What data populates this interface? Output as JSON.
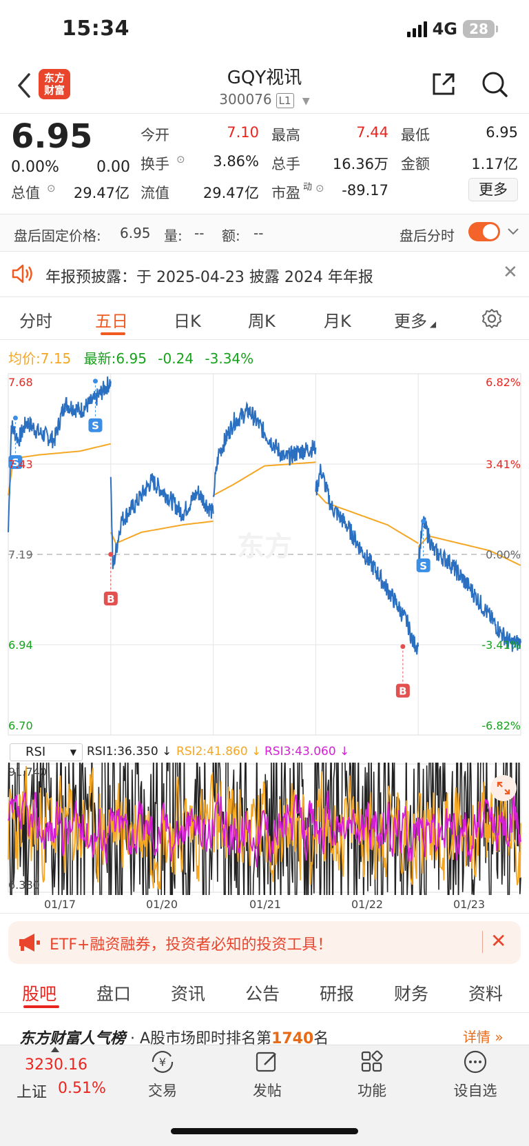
{
  "status_bar": {
    "time": "15:34",
    "network": "4G",
    "battery": "28"
  },
  "header": {
    "logo_line1": "东方",
    "logo_line2": "财富",
    "title": "GQY视讯",
    "code": "300076",
    "level": "L1"
  },
  "quote": {
    "price": "6.95",
    "change_pct": "0.00%",
    "change": "0.00",
    "stats": {
      "open_label": "今开",
      "open": "7.10",
      "high_label": "最高",
      "high": "7.44",
      "low_label": "最低",
      "low": "6.95",
      "turnover_label": "换手",
      "turnover": "3.86%",
      "volume_label": "总手",
      "volume": "16.36万",
      "amount_label": "金额",
      "amount": "1.17亿",
      "mktcap_label": "总值",
      "mktcap": "29.47亿",
      "float_label": "流值",
      "float": "29.47亿",
      "pe_label": "市盈",
      "pe_sup": "动",
      "pe": "-89.17"
    },
    "more_label": "更多"
  },
  "after_hours": {
    "label": "盘后固定价格:",
    "price": "6.95",
    "vol_label": "量:",
    "vol": "--",
    "amt_label": "额:",
    "amt": "--",
    "toggle_label": "盘后分时",
    "toggle_on": true
  },
  "notice": {
    "text": "年报预披露：于 2025-04-23 披露 2024 年年报"
  },
  "tabs": [
    "分时",
    "五日",
    "日K",
    "周K",
    "月K",
    "更多"
  ],
  "active_tab": "五日",
  "legend": {
    "avg_label": "均价:",
    "avg": "7.15",
    "latest_label": "最新:",
    "latest": "6.95",
    "chg": "-0.24",
    "pct": "-3.34%"
  },
  "chart_data": {
    "type": "line",
    "y_labels_left": [
      "7.68",
      "7.43",
      "7.19",
      "6.94",
      "6.70"
    ],
    "y_labels_right": [
      "6.82%",
      "3.41%",
      "0.00%",
      "-3.41%",
      "-6.82%"
    ],
    "ylim": [
      6.7,
      7.68
    ],
    "x_labels": [
      "01/17",
      "01/20",
      "01/21",
      "01/22",
      "01/23"
    ],
    "series": [
      {
        "name": "最新",
        "color": "#2b6fc1"
      },
      {
        "name": "均价",
        "color": "#f5a623"
      }
    ],
    "price_anchors": [
      [
        0,
        7.25
      ],
      [
        0.03,
        7.54
      ],
      [
        0.1,
        7.5
      ],
      [
        0.18,
        7.55
      ],
      [
        0.3,
        7.52
      ],
      [
        0.45,
        7.5
      ],
      [
        0.55,
        7.6
      ],
      [
        0.7,
        7.58
      ],
      [
        0.85,
        7.61
      ],
      [
        1.0,
        7.66
      ],
      [
        1.0,
        7.4
      ],
      [
        1.02,
        7.15
      ],
      [
        1.1,
        7.28
      ],
      [
        1.25,
        7.33
      ],
      [
        1.4,
        7.39
      ],
      [
        1.55,
        7.35
      ],
      [
        1.7,
        7.3
      ],
      [
        1.85,
        7.36
      ],
      [
        2.0,
        7.3
      ],
      [
        2.0,
        7.35
      ],
      [
        2.05,
        7.46
      ],
      [
        2.2,
        7.55
      ],
      [
        2.35,
        7.58
      ],
      [
        2.5,
        7.52
      ],
      [
        2.7,
        7.45
      ],
      [
        2.85,
        7.47
      ],
      [
        3.0,
        7.48
      ],
      [
        3.0,
        7.36
      ],
      [
        3.05,
        7.42
      ],
      [
        3.15,
        7.32
      ],
      [
        3.3,
        7.27
      ],
      [
        3.45,
        7.2
      ],
      [
        3.6,
        7.14
      ],
      [
        3.8,
        7.05
      ],
      [
        3.9,
        7.0
      ],
      [
        3.95,
        6.95
      ],
      [
        4.0,
        6.94
      ],
      [
        4.0,
        7.17
      ],
      [
        4.05,
        7.28
      ],
      [
        4.15,
        7.2
      ],
      [
        4.3,
        7.17
      ],
      [
        4.5,
        7.1
      ],
      [
        4.65,
        7.04
      ],
      [
        4.8,
        6.98
      ],
      [
        4.9,
        6.95
      ],
      [
        5.0,
        6.95
      ]
    ],
    "avg_anchors": [
      [
        0,
        7.35
      ],
      [
        0.05,
        7.45
      ],
      [
        0.3,
        7.46
      ],
      [
        0.7,
        7.47
      ],
      [
        1.0,
        7.49
      ],
      [
        1.0,
        7.25
      ],
      [
        1.05,
        7.22
      ],
      [
        1.3,
        7.25
      ],
      [
        1.7,
        7.27
      ],
      [
        2.0,
        7.28
      ],
      [
        2.0,
        7.35
      ],
      [
        2.2,
        7.38
      ],
      [
        2.5,
        7.43
      ],
      [
        3.0,
        7.44
      ],
      [
        3.0,
        7.36
      ],
      [
        3.1,
        7.33
      ],
      [
        3.4,
        7.3
      ],
      [
        3.7,
        7.27
      ],
      [
        4.0,
        7.22
      ],
      [
        4.0,
        7.21
      ],
      [
        4.1,
        7.24
      ],
      [
        4.4,
        7.22
      ],
      [
        4.7,
        7.2
      ],
      [
        5.0,
        7.16
      ]
    ],
    "markers": [
      {
        "label": "S",
        "day": 0.07,
        "price": 7.56
      },
      {
        "label": "S",
        "day": 0.85,
        "price": 7.66
      },
      {
        "label": "B",
        "day": 1.0,
        "price": 7.19
      },
      {
        "label": "B",
        "day": 3.85,
        "price": 6.94
      },
      {
        "label": "S",
        "day": 4.05,
        "price": 7.28
      }
    ],
    "rsi": {
      "indicator": "RSI",
      "rsi1": "RSI1:36.350",
      "rsi2": "RSI2:41.860",
      "rsi3": "RSI3:43.060",
      "max": "91.740",
      "min": "6.380"
    }
  },
  "promo": {
    "text": "ETF+融资融券，投资者必知的投资工具！"
  },
  "bottom_tabs": [
    "股吧",
    "盘口",
    "资讯",
    "公告",
    "研报",
    "财务",
    "资料"
  ],
  "rank": {
    "brand": "东方财富人气榜",
    "text_pre": "· A股市场即时排名第",
    "rank": "1740",
    "text_post": "名",
    "detail": "详情 »"
  },
  "bottom_nav": {
    "index_value": "3230.16",
    "index_name": "上证",
    "index_pct": "0.51%",
    "items": [
      "交易",
      "发帖",
      "功能",
      "设自选"
    ]
  },
  "colors": {
    "accent": "#f0591f",
    "up": "#e8261f",
    "down": "#16a21b",
    "price_line": "#2b6fc1",
    "avg_line": "#f5a623",
    "rsi3": "#d51fd4"
  }
}
